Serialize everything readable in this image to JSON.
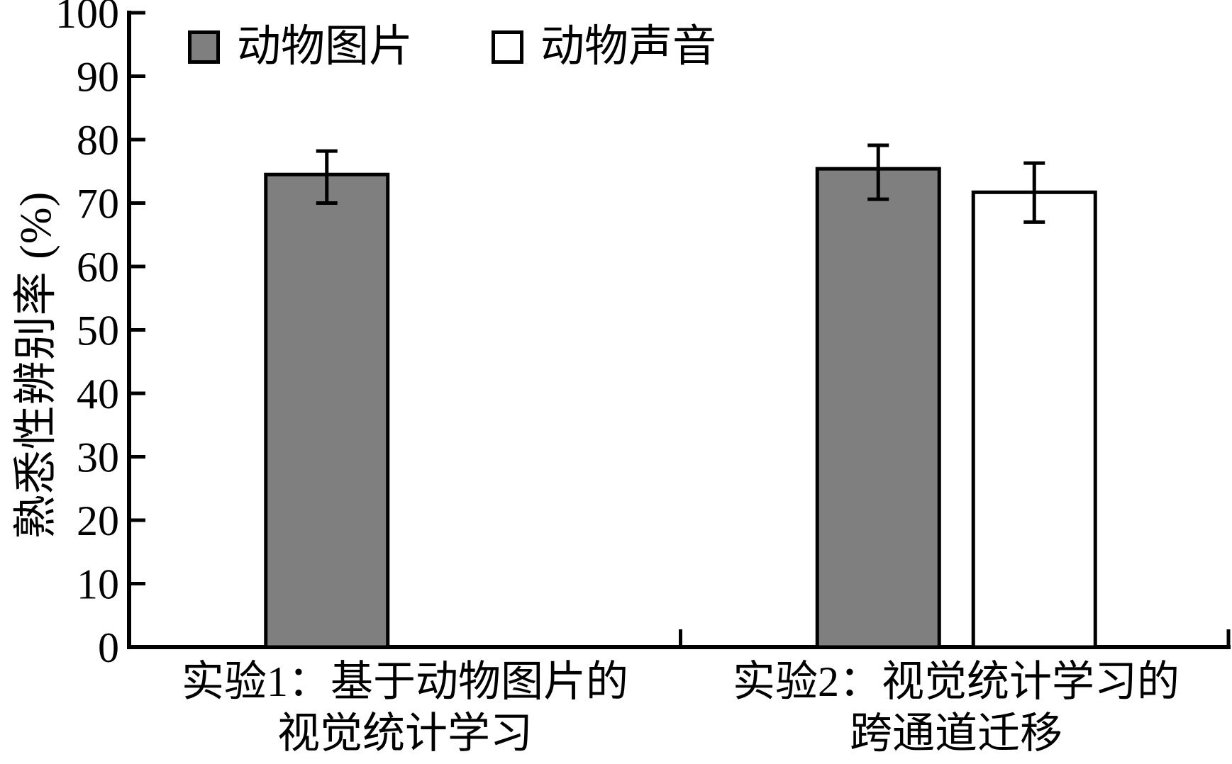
{
  "chart_data": {
    "type": "bar",
    "title": "",
    "ylabel": "熟悉性辨别率 (%)",
    "xlabel": "",
    "ylim": [
      0,
      100
    ],
    "yticks": [
      0,
      10,
      20,
      30,
      40,
      50,
      60,
      70,
      80,
      90,
      100
    ],
    "grid": false,
    "legend_position": "top-inside",
    "categories": [
      "实验1：基于动物图片的视觉统计学习",
      "实验2：视觉统计学习的跨通道迁移"
    ],
    "categories_lines": [
      [
        "实验1：基于动物图片的",
        "视觉统计学习"
      ],
      [
        "实验2：视觉统计学习的",
        "跨通道迁移"
      ]
    ],
    "series": [
      {
        "name": "动物图片",
        "fill": "#7f7f7f",
        "values": [
          74.5,
          75.4
        ],
        "error_low": [
          70.0,
          70.6
        ],
        "error_high": [
          78.2,
          79.1
        ]
      },
      {
        "name": "动物声音",
        "fill": "#ffffff",
        "values": [
          null,
          71.7
        ],
        "error_low": [
          null,
          67.0
        ],
        "error_high": [
          null,
          76.3
        ]
      }
    ],
    "colors": {
      "axis": "#000000",
      "bar_border": "#000000",
      "error_bar": "#000000",
      "gray_fill": "#7f7f7f",
      "white_fill": "#ffffff"
    }
  }
}
